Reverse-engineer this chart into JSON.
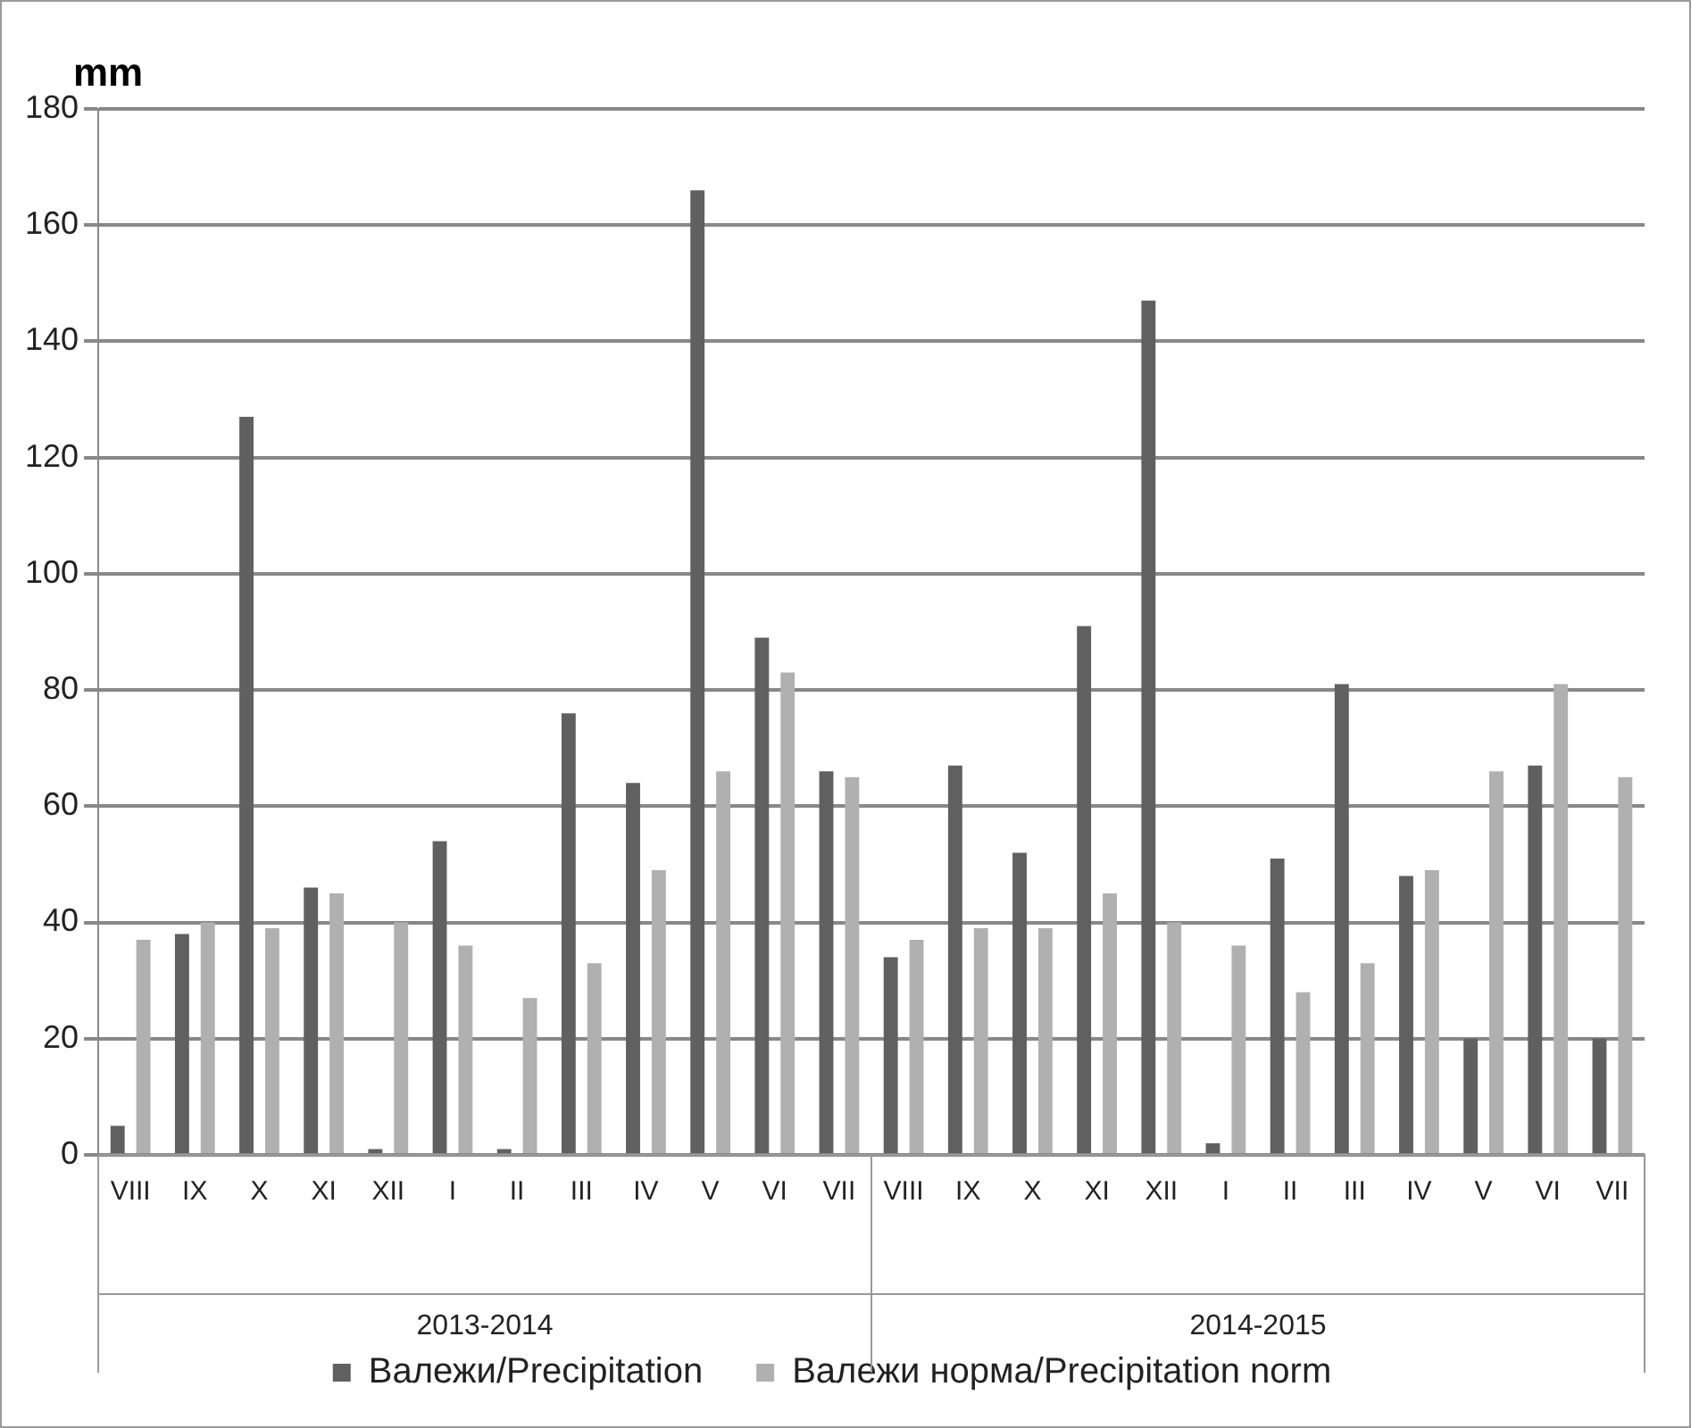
{
  "chart_data": {
    "type": "bar",
    "ylabel": "mm",
    "categories": [
      "VIII",
      "IX",
      "X",
      "XI",
      "XII",
      "I",
      "II",
      "III",
      "IV",
      "V",
      "VI",
      "VII",
      "VIII",
      "IX",
      "X",
      "XI",
      "XII",
      "I",
      "II",
      "III",
      "IV",
      "V",
      "VI",
      "VII"
    ],
    "series": [
      {
        "name": "Валежи/Precipitation",
        "color": "#606060",
        "values": [
          5,
          38,
          127,
          46,
          1,
          54,
          1,
          76,
          64,
          166,
          89,
          66,
          34,
          67,
          52,
          91,
          147,
          2,
          51,
          81,
          48,
          20,
          67,
          20
        ]
      },
      {
        "name": "Валежи норма/Precipitation norm",
        "color": "#b0b0b0",
        "values": [
          37,
          40,
          39,
          45,
          40,
          36,
          27,
          33,
          49,
          66,
          83,
          65,
          37,
          39,
          39,
          45,
          40,
          36,
          28,
          33,
          49,
          66,
          81,
          65
        ]
      }
    ],
    "annotations": [
      "2013-2014",
      "2014-2015"
    ],
    "ylim": [
      0,
      180
    ],
    "yticks": [
      0,
      20,
      40,
      60,
      80,
      100,
      120,
      140,
      160,
      180
    ],
    "grid": "y",
    "legend": "bottom"
  }
}
